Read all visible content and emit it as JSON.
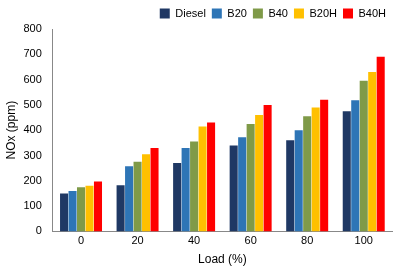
{
  "chart_data": {
    "type": "bar",
    "x_label": "Load (%)",
    "y_label": "NOx (ppm)",
    "categories": [
      "0",
      "20",
      "40",
      "60",
      "80",
      "100"
    ],
    "series": [
      {
        "name": "Diesel",
        "color": "#1f3864",
        "values": [
          150,
          182,
          270,
          340,
          360,
          475
        ]
      },
      {
        "name": "B20",
        "color": "#2e75b6",
        "values": [
          160,
          258,
          330,
          372,
          400,
          518
        ]
      },
      {
        "name": "B40",
        "color": "#7f9a48",
        "values": [
          175,
          275,
          355,
          425,
          455,
          595
        ]
      },
      {
        "name": "B20H",
        "color": "#ffc000",
        "values": [
          180,
          305,
          415,
          460,
          490,
          630
        ]
      },
      {
        "name": "B40H",
        "color": "#ff0000",
        "values": [
          197,
          330,
          430,
          500,
          520,
          690
        ]
      }
    ],
    "ylim": [
      0,
      800
    ],
    "yticks": [
      0,
      100,
      200,
      300,
      400,
      500,
      600,
      700,
      800
    ],
    "grid": false,
    "legend": "top"
  }
}
